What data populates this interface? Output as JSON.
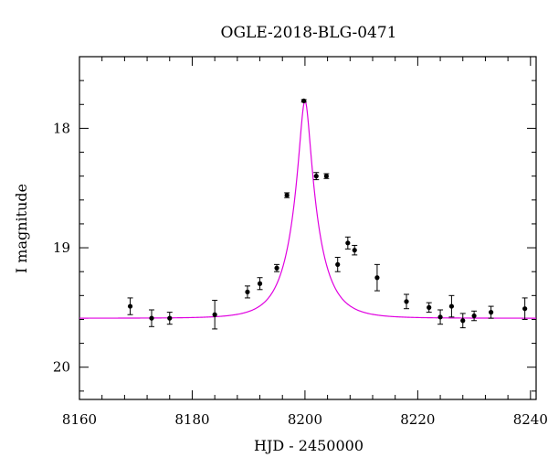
{
  "chart_data": {
    "type": "scatter",
    "title": "OGLE-2018-BLG-0471",
    "xlabel": "HJD - 2450000",
    "ylabel": "I magnitude",
    "xlim": [
      8160,
      8241
    ],
    "ylim": [
      20.27,
      17.4
    ],
    "y_inverted": true,
    "x_ticks": [
      8160,
      8180,
      8200,
      8220,
      8240
    ],
    "y_ticks": [
      18,
      19,
      20
    ],
    "x_tick_labels": [
      "8160",
      "8180",
      "8200",
      "8220",
      "8240"
    ],
    "y_tick_labels": [
      "18",
      "19",
      "20"
    ],
    "grid": false,
    "legend": "none",
    "series": [
      {
        "type": "scatter",
        "color": "#000000",
        "points": [
          {
            "x": 8169.0,
            "y": 19.49,
            "err": 0.07
          },
          {
            "x": 8172.8,
            "y": 19.59,
            "err": 0.07
          },
          {
            "x": 8176.0,
            "y": 19.59,
            "err": 0.05
          },
          {
            "x": 8184.0,
            "y": 19.56,
            "err": 0.12
          },
          {
            "x": 8189.8,
            "y": 19.37,
            "err": 0.05
          },
          {
            "x": 8192.0,
            "y": 19.3,
            "err": 0.05
          },
          {
            "x": 8195.0,
            "y": 19.17,
            "err": 0.03
          },
          {
            "x": 8196.8,
            "y": 18.56,
            "err": 0.02
          },
          {
            "x": 8199.8,
            "y": 17.77,
            "err": 0.01
          },
          {
            "x": 8202.0,
            "y": 18.4,
            "err": 0.03
          },
          {
            "x": 8203.8,
            "y": 18.4,
            "err": 0.02
          },
          {
            "x": 8205.8,
            "y": 19.14,
            "err": 0.06
          },
          {
            "x": 8207.6,
            "y": 18.96,
            "err": 0.05
          },
          {
            "x": 8208.8,
            "y": 19.02,
            "err": 0.04
          },
          {
            "x": 8212.8,
            "y": 19.25,
            "err": 0.11
          },
          {
            "x": 8218.0,
            "y": 19.45,
            "err": 0.06
          },
          {
            "x": 8222.0,
            "y": 19.5,
            "err": 0.04
          },
          {
            "x": 8224.0,
            "y": 19.58,
            "err": 0.06
          },
          {
            "x": 8226.0,
            "y": 19.49,
            "err": 0.09
          },
          {
            "x": 8228.0,
            "y": 19.61,
            "err": 0.06
          },
          {
            "x": 8230.0,
            "y": 19.57,
            "err": 0.04
          },
          {
            "x": 8233.0,
            "y": 19.54,
            "err": 0.05
          },
          {
            "x": 8239.0,
            "y": 19.51,
            "err": 0.09
          }
        ]
      },
      {
        "type": "line",
        "color": "#e000e0",
        "model": {
          "t0": 8200.0,
          "tE": 4.8,
          "I_base": 19.59,
          "peak_mag": 17.77
        }
      }
    ]
  }
}
